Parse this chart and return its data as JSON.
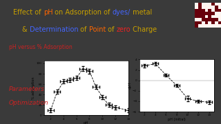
{
  "bg_color": "#3A3A3A",
  "plot_bg": "#FFFFFF",
  "title_line1": [
    {
      "text": "Effect of ",
      "color": "#C8A000"
    },
    {
      "text": "pH",
      "color": "#FF6600"
    },
    {
      "text": " on Adsorption of ",
      "color": "#C8A000"
    },
    {
      "text": "dyes/",
      "color": "#4466FF"
    },
    {
      "text": " metal",
      "color": "#C8A000"
    }
  ],
  "title_line2": [
    {
      "text": "& ",
      "color": "#C8A000"
    },
    {
      "text": "Determination",
      "color": "#4466FF"
    },
    {
      "text": " of ",
      "color": "#C8A000"
    },
    {
      "text": "Point",
      "color": "#FF6600"
    },
    {
      "text": " of ",
      "color": "#C8A000"
    },
    {
      "text": "zero",
      "color": "#EE2222"
    },
    {
      "text": " Charge",
      "color": "#C8A000"
    }
  ],
  "subtitle1": "pH versus % Adsorption",
  "subtitle1_color": "#CC2222",
  "subtitle2_line1": "Parameters",
  "subtitle2_line2": "Optimization",
  "subtitle2_color": "#CC2222",
  "plot1": {
    "xlabel": "pH",
    "ylabel": "% adsorption",
    "x": [
      2,
      3,
      4,
      5,
      6,
      7,
      8,
      9,
      10,
      11,
      12,
      14
    ],
    "y": [
      10,
      45,
      65,
      68,
      72,
      90,
      85,
      55,
      35,
      20,
      15,
      10
    ],
    "xerr": [
      0.5,
      0.5,
      0.5,
      0.5,
      0.5,
      0.5,
      0.5,
      0.5,
      0.5,
      0.5,
      0.5,
      0.5
    ],
    "yerr": [
      4,
      4,
      4,
      4,
      4,
      5,
      5,
      4,
      4,
      4,
      4,
      4
    ],
    "ylim": [
      0,
      105
    ],
    "xlim": [
      1,
      14
    ]
  },
  "plot2": {
    "xlabel": "pH (initial)",
    "ylabel": "dpH",
    "x": [
      2,
      4,
      6,
      8,
      10,
      12,
      14
    ],
    "y": [
      2.8,
      3.2,
      1.0,
      -1.0,
      -3.5,
      -4.0,
      -4.2
    ],
    "xerr": [
      0.5,
      0.5,
      0.5,
      0.5,
      0.5,
      0.5,
      0.5
    ],
    "yerr": [
      0.3,
      0.3,
      0.3,
      0.3,
      0.5,
      0.3,
      0.3
    ],
    "ylim": [
      -6,
      4
    ],
    "xlim": [
      1,
      15
    ]
  },
  "title_fontsize": 7.0,
  "sub_fontsize": 5.5,
  "param_fontsize": 6.5
}
